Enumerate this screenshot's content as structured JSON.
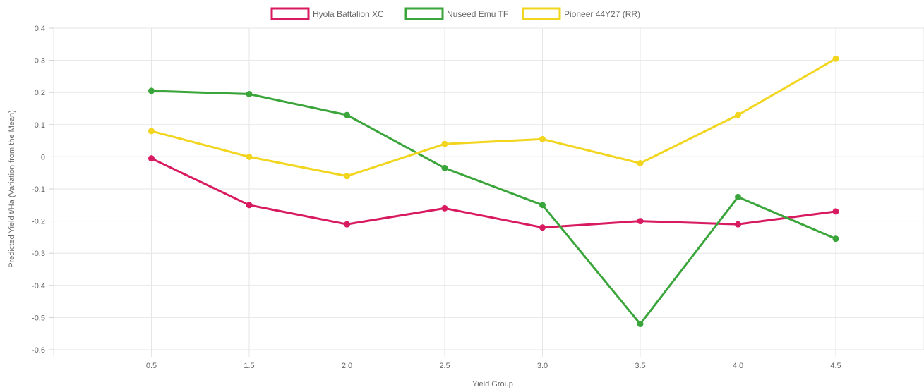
{
  "chart_data": {
    "type": "line",
    "title": "",
    "xlabel": "Yield Group",
    "ylabel": "Predicted Yield t/Ha (Variation from the Mean)",
    "x": [
      0.5,
      1.5,
      2.0,
      2.5,
      3.0,
      3.5,
      4.0,
      4.5
    ],
    "x_tick_labels": [
      "0.5",
      "1.5",
      "2.0",
      "2.5",
      "3.0",
      "3.5",
      "4.0",
      "4.5"
    ],
    "y_ticks": [
      0.4,
      0.3,
      0.2,
      0.1,
      0,
      -0.1,
      -0.2,
      -0.3,
      -0.4,
      -0.5,
      -0.6
    ],
    "y_tick_labels": [
      "0.4",
      "0.3",
      "0.2",
      "0.1",
      "0",
      "-0.1",
      "-0.2",
      "-0.3",
      "-0.4",
      "-0.5",
      "-0.6"
    ],
    "ylim": [
      -0.6,
      0.4
    ],
    "grid": true,
    "legend_position": "top-center",
    "series": [
      {
        "name": "Hyola Battalion XC",
        "color": "#d81b60",
        "values": [
          -0.005,
          -0.15,
          -0.21,
          -0.16,
          -0.22,
          -0.2,
          -0.21,
          -0.17
        ]
      },
      {
        "name": "Nuseed Emu TF",
        "color": "#3aa53a",
        "values": [
          0.205,
          0.195,
          0.13,
          -0.035,
          -0.15,
          -0.52,
          -0.125,
          -0.255
        ]
      },
      {
        "name": "Pioneer 44Y27 (RR)",
        "color": "#f2d51f",
        "values": [
          0.08,
          0.0,
          -0.06,
          0.04,
          0.055,
          -0.02,
          0.13,
          0.305
        ]
      }
    ]
  }
}
